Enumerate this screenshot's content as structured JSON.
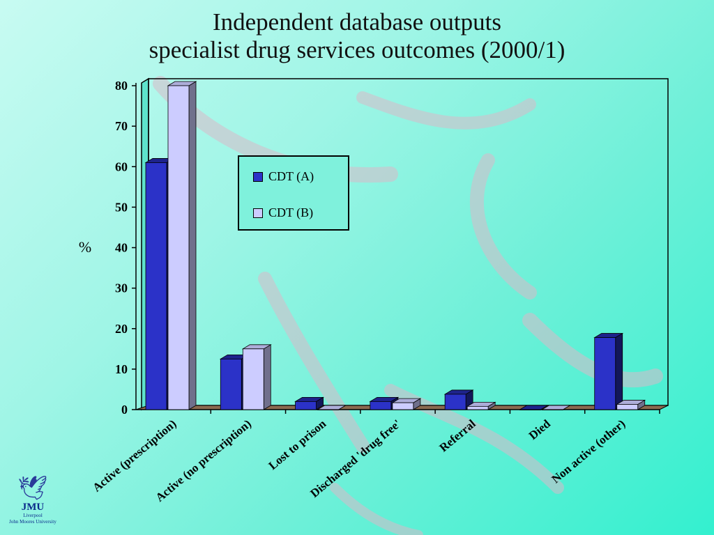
{
  "title": {
    "line1": "Independent database outputs",
    "line2": "specialist drug services outcomes (2000/1)"
  },
  "logo": {
    "mark": "JMU",
    "line1": "Liverpool",
    "line2": "John Moores University",
    "icon": "liver-bird-icon"
  },
  "colors": {
    "series_a": "#2b32c8",
    "series_b": "#ccccff",
    "accent": "#33f0cf"
  },
  "chart_data": {
    "type": "bar",
    "title": "",
    "xlabel": "",
    "ylabel": "%",
    "ylim": [
      0,
      80
    ],
    "yticks": [
      0,
      10,
      20,
      30,
      40,
      50,
      60,
      70,
      80
    ],
    "categories": [
      "Active (prescription)",
      "Active (no prescription)",
      "Lost to prison",
      "Discharged 'drug free'",
      "Referral",
      "Died",
      "Non active (other)"
    ],
    "series": [
      {
        "name": "CDT (A)",
        "values": [
          61,
          12.5,
          2,
          2,
          3.8,
          0,
          17.8
        ]
      },
      {
        "name": "CDT (B)",
        "values": [
          80,
          15,
          0,
          1.7,
          0.8,
          0,
          1.3
        ]
      }
    ],
    "legend_position": "upper-middle",
    "grid": false
  }
}
